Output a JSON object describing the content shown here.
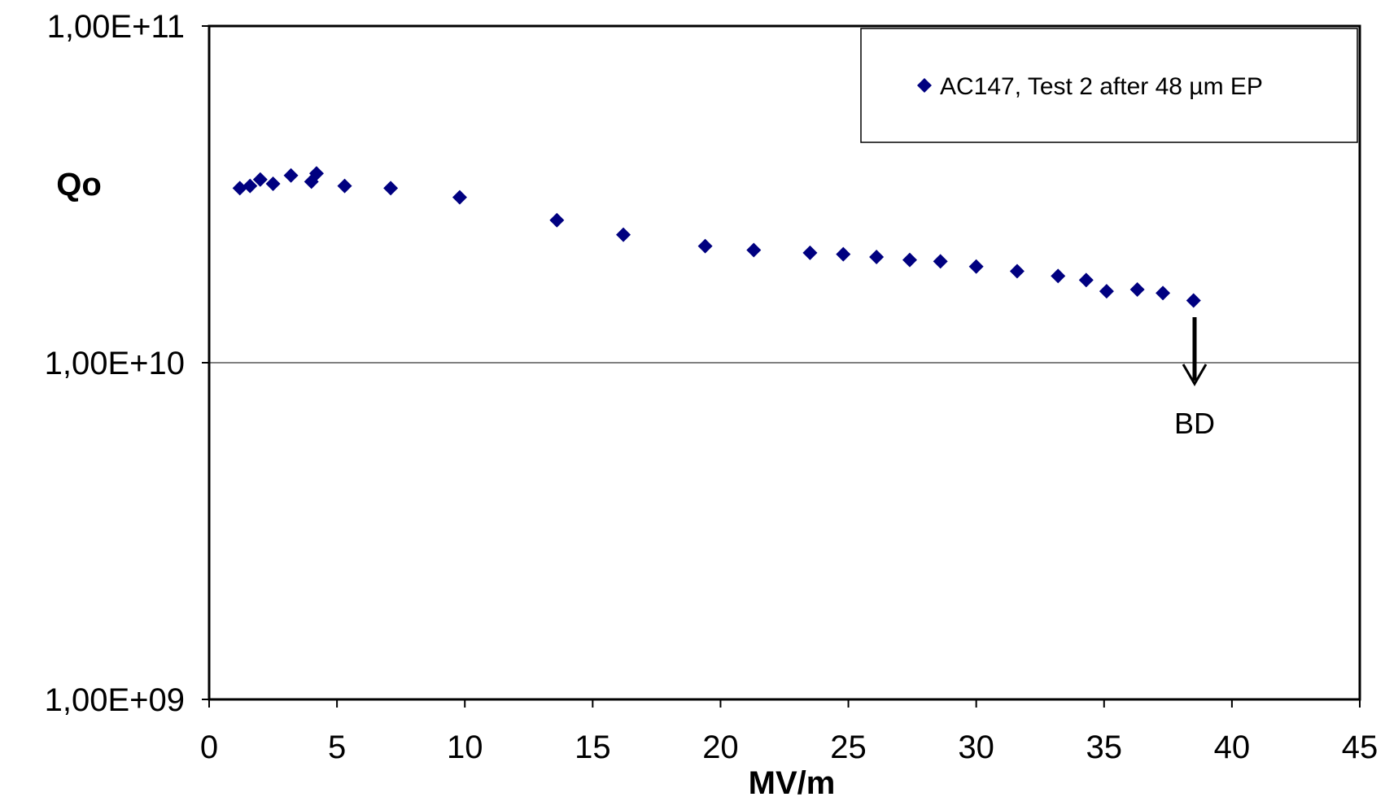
{
  "chart_data": {
    "type": "scatter",
    "xlabel": "MV/m",
    "ylabel": "Qo",
    "xlim": [
      0,
      45
    ],
    "ylim": [
      1000000000.0,
      100000000000.0
    ],
    "y_scale": "log",
    "x_ticks": [
      0,
      5,
      10,
      15,
      20,
      25,
      30,
      35,
      40,
      45
    ],
    "y_ticks": [
      {
        "value": 1000000000.0,
        "label": "1,00E+09"
      },
      {
        "value": 10000000000.0,
        "label": "1,00E+10"
      },
      {
        "value": 100000000000.0,
        "label": "1,00E+11"
      }
    ],
    "grid": "horizontal major lines",
    "legend_position": "top-right",
    "marker_color": "#000080",
    "series": [
      {
        "name": "AC147, Test 2 after 48 µm EP",
        "points": [
          [
            1.2,
            33000000000.0
          ],
          [
            1.6,
            33500000000.0
          ],
          [
            2.0,
            35000000000.0
          ],
          [
            2.5,
            34000000000.0
          ],
          [
            3.2,
            36000000000.0
          ],
          [
            4.0,
            34500000000.0
          ],
          [
            4.2,
            36500000000.0
          ],
          [
            5.3,
            33500000000.0
          ],
          [
            7.1,
            33000000000.0
          ],
          [
            9.8,
            31000000000.0
          ],
          [
            13.6,
            26500000000.0
          ],
          [
            16.2,
            24000000000.0
          ],
          [
            19.4,
            22200000000.0
          ],
          [
            21.3,
            21600000000.0
          ],
          [
            23.5,
            21200000000.0
          ],
          [
            24.8,
            21000000000.0
          ],
          [
            26.1,
            20600000000.0
          ],
          [
            27.4,
            20200000000.0
          ],
          [
            28.6,
            20000000000.0
          ],
          [
            30.0,
            19300000000.0
          ],
          [
            31.6,
            18700000000.0
          ],
          [
            33.2,
            18100000000.0
          ],
          [
            34.3,
            17600000000.0
          ],
          [
            35.1,
            16300000000.0
          ],
          [
            36.3,
            16500000000.0
          ],
          [
            37.3,
            16100000000.0
          ],
          [
            38.5,
            15300000000.0
          ]
        ]
      }
    ],
    "annotations": [
      {
        "text": "BD",
        "x": 38.5
      }
    ]
  }
}
